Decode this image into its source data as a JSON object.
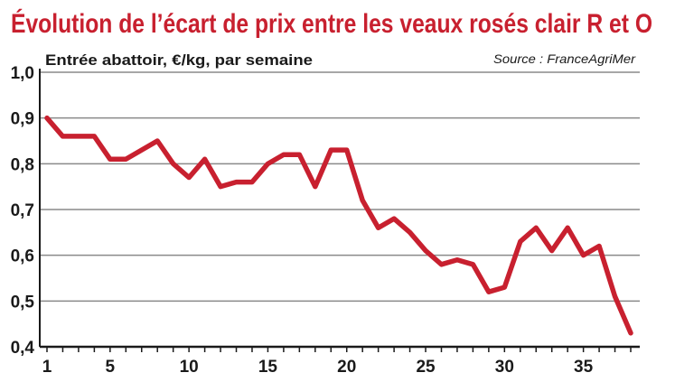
{
  "colors": {
    "title": "#c8202f",
    "line": "#c8202f",
    "grid": "#8a8a8a",
    "axis": "#1a1a1a",
    "background": "#ffffff"
  },
  "chart_data": {
    "type": "line",
    "title": "Évolution de l’écart de prix entre les veaux rosés clair R et O",
    "subtitle": "Entrée abattoir, €/kg, par semaine",
    "source": "Source : FranceAgriMer",
    "xlim": [
      1,
      38
    ],
    "ylim": [
      0.4,
      1.0
    ],
    "grid": true,
    "x_ticks": [
      {
        "value": 1,
        "label": "1"
      },
      {
        "value": 5,
        "label": "5"
      },
      {
        "value": 10,
        "label": "10"
      },
      {
        "value": 15,
        "label": "15"
      },
      {
        "value": 20,
        "label": "20"
      },
      {
        "value": 25,
        "label": "25"
      },
      {
        "value": 30,
        "label": "30"
      },
      {
        "value": 35,
        "label": "35"
      }
    ],
    "y_ticks": [
      {
        "value": 0.4,
        "label": "0,4"
      },
      {
        "value": 0.5,
        "label": "0,5"
      },
      {
        "value": 0.6,
        "label": "0,6"
      },
      {
        "value": 0.7,
        "label": "0,7"
      },
      {
        "value": 0.8,
        "label": "0,8"
      },
      {
        "value": 0.9,
        "label": "0,9"
      },
      {
        "value": 1.0,
        "label": "1,0"
      }
    ],
    "series": [
      {
        "x": [
          1,
          2,
          3,
          4,
          5,
          6,
          7,
          8,
          9,
          10,
          11,
          12,
          13,
          14,
          15,
          16,
          17,
          18,
          19,
          20,
          21,
          22,
          23,
          24,
          25,
          26,
          27,
          28,
          29,
          30,
          31,
          32,
          33,
          34,
          35,
          36,
          37,
          38
        ],
        "values": [
          0.9,
          0.86,
          0.86,
          0.86,
          0.81,
          0.81,
          0.83,
          0.85,
          0.8,
          0.77,
          0.81,
          0.75,
          0.76,
          0.76,
          0.8,
          0.82,
          0.82,
          0.75,
          0.83,
          0.83,
          0.72,
          0.66,
          0.68,
          0.65,
          0.61,
          0.58,
          0.59,
          0.58,
          0.52,
          0.53,
          0.63,
          0.66,
          0.61,
          0.66,
          0.6,
          0.62,
          0.51,
          0.43
        ]
      }
    ]
  }
}
